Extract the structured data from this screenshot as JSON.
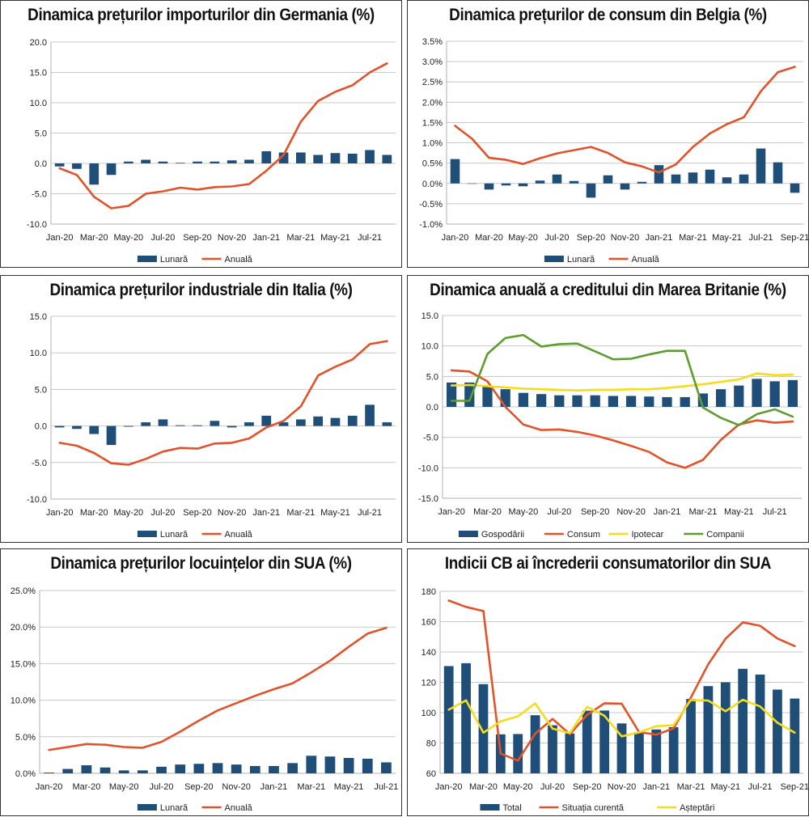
{
  "chart_data": [
    {
      "type": "bar+line",
      "title": "Dinamica prețurilor importurilor din Germania (%)",
      "categories": [
        "Jan-20",
        "Feb-20",
        "Mar-20",
        "Apr-20",
        "May-20",
        "Jun-20",
        "Jul-20",
        "Aug-20",
        "Sep-20",
        "Oct-20",
        "Nov-20",
        "Dec-20",
        "Jan-21",
        "Feb-21",
        "Mar-21",
        "Apr-21",
        "May-21",
        "Jun-21",
        "Jul-21",
        "Aug-21"
      ],
      "tick_labels": [
        "Jan-20",
        "Mar-20",
        "May-20",
        "Jul-20",
        "Sep-20",
        "Nov-20",
        "Jan-21",
        "Mar-21",
        "May-21",
        "Jul-21"
      ],
      "ylim": [
        -10,
        20
      ],
      "ystep": 5,
      "yformat": "fixed1",
      "series": [
        {
          "name": "Lunară",
          "kind": "bar",
          "color": "#1f4e79",
          "values": [
            -0.5,
            -0.9,
            -3.5,
            -1.9,
            0.3,
            0.6,
            0.3,
            0.1,
            0.3,
            0.3,
            0.5,
            0.6,
            2.0,
            1.8,
            1.8,
            1.4,
            1.7,
            1.6,
            2.2,
            1.4
          ]
        },
        {
          "name": "Anuală",
          "kind": "line",
          "color": "#e4522a",
          "values": [
            -0.8,
            -1.9,
            -5.5,
            -7.4,
            -7.0,
            -5.0,
            -4.6,
            -4.0,
            -4.3,
            -3.9,
            -3.8,
            -3.4,
            -1.2,
            1.4,
            6.9,
            10.3,
            11.8,
            12.9,
            15.0,
            16.5
          ]
        }
      ]
    },
    {
      "type": "bar+line",
      "title": "Dinamica prețurilor de consum din Belgia (%)",
      "categories": [
        "Jan-20",
        "Feb-20",
        "Mar-20",
        "Apr-20",
        "May-20",
        "Jun-20",
        "Jul-20",
        "Aug-20",
        "Sep-20",
        "Oct-20",
        "Nov-20",
        "Dec-20",
        "Jan-21",
        "Feb-21",
        "Mar-21",
        "Apr-21",
        "May-21",
        "Jun-21",
        "Jul-21",
        "Aug-21",
        "Sep-21"
      ],
      "tick_labels": [
        "Jan-20",
        "Mar-20",
        "May-20",
        "Jul-20",
        "Sep-20",
        "Nov-20",
        "Jan-21",
        "Mar-21",
        "May-21",
        "Jul-21",
        "Sep-21"
      ],
      "ylim": [
        -1.0,
        3.5
      ],
      "ystep": 0.5,
      "yformat": "percent1",
      "series": [
        {
          "name": "Lunară",
          "kind": "bar",
          "color": "#1f4e79",
          "values": [
            0.6,
            0.0,
            -0.15,
            -0.05,
            -0.07,
            0.07,
            0.22,
            0.06,
            -0.35,
            0.2,
            -0.15,
            0.04,
            0.45,
            0.22,
            0.27,
            0.34,
            0.15,
            0.22,
            0.86,
            0.52,
            -0.23
          ]
        },
        {
          "name": "Anuală",
          "kind": "line",
          "color": "#e4522a",
          "values": [
            1.42,
            1.1,
            0.63,
            0.58,
            0.48,
            0.62,
            0.74,
            0.82,
            0.9,
            0.75,
            0.52,
            0.42,
            0.27,
            0.47,
            0.9,
            1.23,
            1.46,
            1.63,
            2.27,
            2.74,
            2.87
          ]
        }
      ]
    },
    {
      "type": "bar+line",
      "title": "Dinamica prețurilor industriale din Italia (%)",
      "categories": [
        "Jan-20",
        "Feb-20",
        "Mar-20",
        "Apr-20",
        "May-20",
        "Jun-20",
        "Jul-20",
        "Aug-20",
        "Sep-20",
        "Oct-20",
        "Nov-20",
        "Dec-20",
        "Jan-21",
        "Feb-21",
        "Mar-21",
        "Apr-21",
        "May-21",
        "Jun-21",
        "Jul-21",
        "Aug-21"
      ],
      "tick_labels": [
        "Jan-20",
        "Mar-20",
        "May-20",
        "Jul-20",
        "Sep-20",
        "Nov-20",
        "Jan-21",
        "Mar-21",
        "May-21",
        "Jul-21"
      ],
      "ylim": [
        -10,
        15
      ],
      "ystep": 5,
      "yformat": "fixed1",
      "series": [
        {
          "name": "Lunară",
          "kind": "bar",
          "color": "#1f4e79",
          "values": [
            -0.2,
            -0.4,
            -1.1,
            -2.6,
            -0.1,
            0.5,
            0.9,
            0.1,
            0.1,
            0.7,
            -0.2,
            0.5,
            1.4,
            0.5,
            0.9,
            1.3,
            1.1,
            1.4,
            2.9,
            0.5
          ]
        },
        {
          "name": "Anuală",
          "kind": "line",
          "color": "#e4522a",
          "values": [
            -2.3,
            -2.7,
            -3.7,
            -5.1,
            -5.3,
            -4.5,
            -3.5,
            -3.0,
            -3.1,
            -2.4,
            -2.3,
            -1.7,
            -0.2,
            0.7,
            2.7,
            6.9,
            8.1,
            9.1,
            11.2,
            11.6
          ]
        }
      ]
    },
    {
      "type": "bar+line",
      "title": "Dinamica anuală a creditului din Marea Britanie (%)",
      "categories": [
        "Jan-20",
        "Feb-20",
        "Mar-20",
        "Apr-20",
        "May-20",
        "Jun-20",
        "Jul-20",
        "Aug-20",
        "Sep-20",
        "Oct-20",
        "Nov-20",
        "Dec-20",
        "Jan-21",
        "Feb-21",
        "Mar-21",
        "Apr-21",
        "May-21",
        "Jun-21",
        "Jul-21",
        "Aug-21"
      ],
      "tick_labels": [
        "Jan-20",
        "Mar-20",
        "May-20",
        "Jul-20",
        "Sep-20",
        "Nov-20",
        "Jan-21",
        "Mar-21",
        "May-21",
        "Jul-21"
      ],
      "ylim": [
        -15,
        15
      ],
      "ystep": 5,
      "yformat": "fixed1",
      "series": [
        {
          "name": "Gospodării",
          "kind": "bar",
          "color": "#1f4e79",
          "values": [
            4.0,
            4.0,
            3.5,
            2.9,
            2.3,
            2.1,
            1.9,
            1.9,
            1.9,
            1.8,
            1.8,
            1.7,
            1.6,
            1.6,
            2.2,
            2.9,
            3.5,
            4.6,
            4.2,
            4.4
          ]
        },
        {
          "name": "Consum",
          "kind": "line",
          "color": "#e4522a",
          "values": [
            6.0,
            5.8,
            4.2,
            0.0,
            -2.9,
            -3.8,
            -3.7,
            -4.1,
            -4.7,
            -5.5,
            -6.4,
            -7.4,
            -9.1,
            -10.0,
            -8.7,
            -5.4,
            -2.9,
            -2.2,
            -2.6,
            -2.4
          ]
        },
        {
          "name": "Ipotecar",
          "kind": "line",
          "color": "#f5dc1e",
          "values": [
            3.5,
            3.6,
            3.4,
            3.2,
            3.0,
            2.9,
            2.8,
            2.7,
            2.8,
            2.8,
            2.9,
            2.9,
            3.1,
            3.4,
            3.7,
            4.1,
            4.5,
            5.5,
            5.2,
            5.3
          ]
        },
        {
          "name": "Companii",
          "kind": "line",
          "color": "#5d9e2e",
          "values": [
            1.0,
            1.0,
            8.7,
            11.3,
            11.8,
            9.9,
            10.3,
            10.4,
            9.1,
            7.8,
            7.9,
            8.6,
            9.2,
            9.2,
            -0.1,
            -1.8,
            -3.0,
            -1.2,
            -0.4,
            -1.6
          ]
        }
      ]
    },
    {
      "type": "bar+line",
      "title": "Dinamica prețurilor locuințelor din SUA (%)",
      "categories": [
        "Jan-20",
        "Feb-20",
        "Mar-20",
        "Apr-20",
        "May-20",
        "Jun-20",
        "Jul-20",
        "Aug-20",
        "Sep-20",
        "Oct-20",
        "Nov-20",
        "Dec-20",
        "Jan-21",
        "Feb-21",
        "Mar-21",
        "Apr-21",
        "May-21",
        "Jun-21",
        "Jul-21"
      ],
      "tick_labels": [
        "Jan-20",
        "Mar-20",
        "May-20",
        "Jul-20",
        "Sep-20",
        "Nov-20",
        "Jan-21",
        "Mar-21",
        "May-21",
        "Jul-21"
      ],
      "ylim": [
        0,
        25
      ],
      "ystep": 5,
      "yformat": "percent1",
      "series": [
        {
          "name": "Lunară",
          "kind": "bar",
          "color": "#1f4e79",
          "values": [
            0.1,
            0.6,
            1.1,
            0.8,
            0.4,
            0.4,
            0.9,
            1.2,
            1.3,
            1.4,
            1.2,
            1.0,
            1.0,
            1.4,
            2.4,
            2.3,
            2.1,
            2.0,
            1.5
          ]
        },
        {
          "name": "Anuală",
          "kind": "line",
          "color": "#e4522a",
          "values": [
            3.2,
            3.6,
            4.0,
            3.9,
            3.6,
            3.5,
            4.3,
            5.7,
            7.2,
            8.6,
            9.6,
            10.6,
            11.5,
            12.3,
            13.8,
            15.4,
            17.3,
            19.1,
            19.9
          ]
        }
      ]
    },
    {
      "type": "bar+line",
      "title": "Indicii CB ai încrederii consumatorilor din SUA",
      "categories": [
        "Jan-20",
        "Feb-20",
        "Mar-20",
        "Apr-20",
        "May-20",
        "Jun-20",
        "Jul-20",
        "Aug-20",
        "Sep-20",
        "Oct-20",
        "Nov-20",
        "Dec-20",
        "Jan-21",
        "Feb-21",
        "Mar-21",
        "Apr-21",
        "May-21",
        "Jun-21",
        "Jul-21",
        "Aug-21",
        "Sep-21"
      ],
      "tick_labels": [
        "Jan-20",
        "Mar-20",
        "May-20",
        "Jul-20",
        "Sep-20",
        "Nov-20",
        "Jan-21",
        "Mar-21",
        "May-21",
        "Jul-21",
        "Sep-21"
      ],
      "ylim": [
        60,
        180
      ],
      "ystep": 20,
      "yformat": "int",
      "series": [
        {
          "name": "Total",
          "kind": "bar",
          "color": "#1f4e79",
          "values": [
            130.7,
            132.6,
            118.8,
            85.7,
            85.9,
            98.3,
            91.7,
            86.3,
            101.3,
            101.4,
            92.9,
            87.1,
            88.9,
            90.4,
            109.0,
            117.5,
            120.0,
            128.9,
            125.1,
            115.2,
            109.3
          ]
        },
        {
          "name": "Situația curentă",
          "kind": "line",
          "color": "#e4522a",
          "values": [
            173.9,
            169.7,
            167.0,
            73.0,
            68.4,
            86.2,
            95.9,
            85.8,
            98.5,
            106.2,
            105.9,
            87.2,
            85.5,
            89.6,
            110.0,
            131.9,
            148.7,
            159.6,
            157.3,
            148.9,
            143.9
          ]
        },
        {
          "name": "Așteptări",
          "kind": "line",
          "color": "#f5dc1e",
          "values": [
            101.9,
            108.1,
            86.8,
            94.3,
            97.6,
            106.1,
            89.5,
            86.5,
            103.9,
            98.0,
            84.4,
            87.0,
            91.1,
            91.7,
            108.3,
            108.0,
            100.9,
            108.5,
            104.1,
            93.4,
            86.8
          ]
        }
      ]
    }
  ]
}
